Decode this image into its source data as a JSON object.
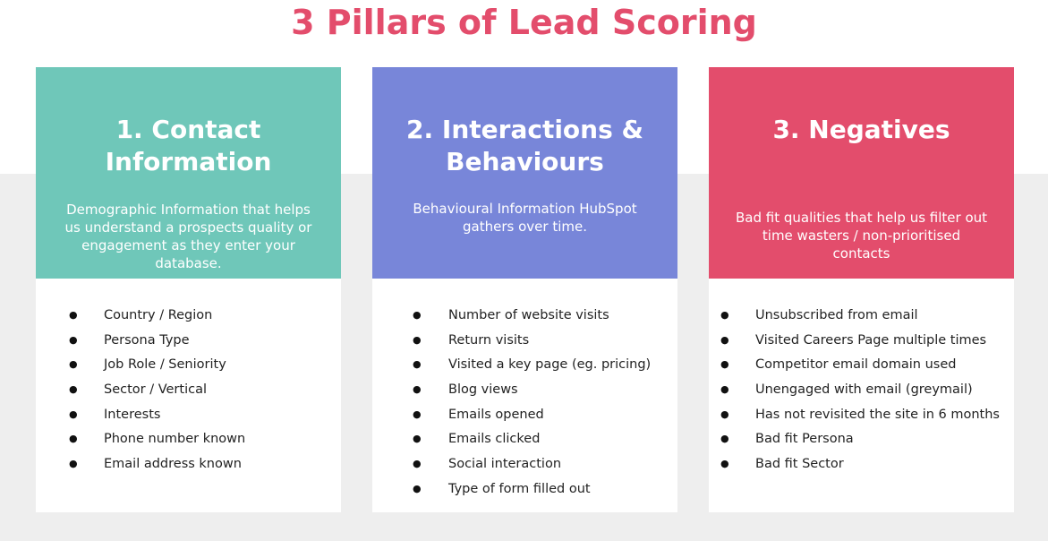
{
  "header": {
    "title": "3 Pillars of Lead Scoring"
  },
  "colors": {
    "title": "#e34d6c",
    "teal": "#6fc7b9",
    "purple": "#7886d9",
    "red": "#e34d6c",
    "band": "#eeeeee"
  },
  "cards": [
    {
      "title": "1. Contact Information",
      "description": "Demographic Information that helps us understand a prospects quality or engagement as they enter your database.",
      "items": [
        "Country / Region",
        "Persona Type",
        "Job Role / Seniority",
        "Sector / Vertical",
        "Interests",
        "Phone number known",
        "Email address known"
      ]
    },
    {
      "title": "2. Interactions & Behaviours",
      "description": "Behavioural Information HubSpot gathers over time.",
      "items": [
        "Number of website visits",
        "Return visits",
        "Visited a key page (eg. pricing)",
        "Blog views",
        "Emails opened",
        "Emails clicked",
        "Social interaction",
        "Type of form filled out"
      ]
    },
    {
      "title": "3. Negatives",
      "description": "Bad fit qualities that help us filter out time wasters / non-prioritised contacts",
      "items": [
        "Unsubscribed from email",
        "Visited Careers Page multiple times",
        "Competitor email domain used",
        "Unengaged with email (greymail)",
        "Has not revisited the site in 6 months",
        "Bad fit Persona",
        "Bad fit Sector"
      ]
    }
  ],
  "bullet": "●"
}
